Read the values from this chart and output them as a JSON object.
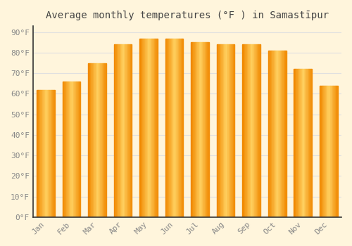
{
  "title": "Average monthly temperatures (°F ) in Samastīpur",
  "months": [
    "Jan",
    "Feb",
    "Mar",
    "Apr",
    "May",
    "Jun",
    "Jul",
    "Aug",
    "Sep",
    "Oct",
    "Nov",
    "Dec"
  ],
  "values": [
    62,
    66,
    75,
    84,
    87,
    87,
    85,
    84,
    84,
    81,
    72,
    64
  ],
  "bar_color": "#FFA500",
  "bar_color_light": "#FFD070",
  "bar_color_dark": "#F08000",
  "background_color": "#FFF5DC",
  "plot_bg_color": "#FFF5DC",
  "grid_color": "#E0E0E0",
  "yticks": [
    0,
    10,
    20,
    30,
    40,
    50,
    60,
    70,
    80,
    90
  ],
  "ylim": [
    0,
    93
  ],
  "title_fontsize": 10,
  "tick_fontsize": 8,
  "tick_color": "#888888",
  "spine_color": "#333333"
}
